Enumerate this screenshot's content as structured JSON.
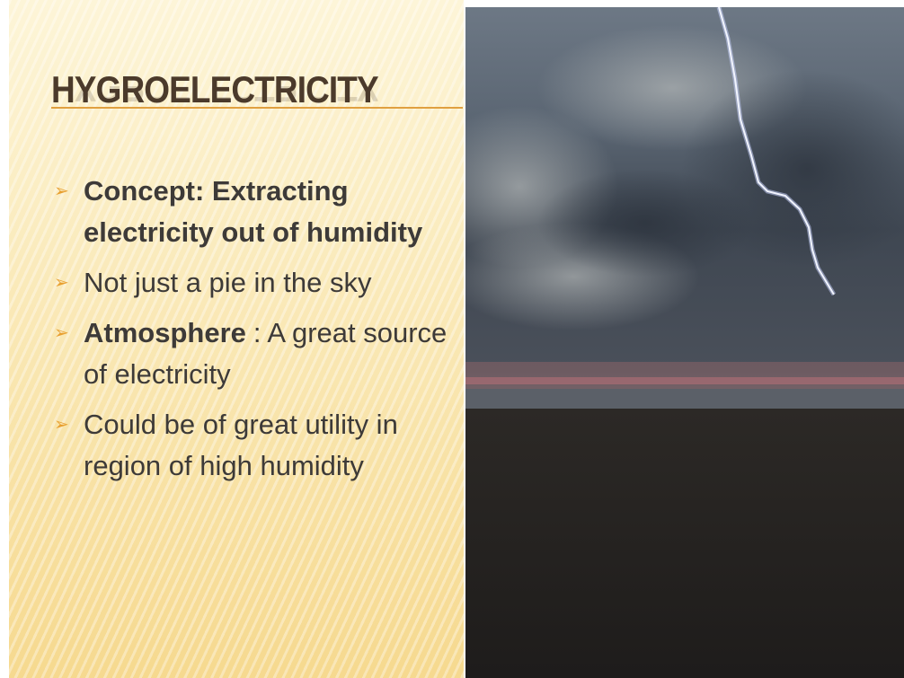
{
  "slide": {
    "title": "HYGROELECTRICITY",
    "bullets": [
      {
        "bold": "Concept: Extracting electricity out of humidity"
      },
      {
        "text": "Not just a pie in the sky"
      },
      {
        "bold": "Atmosphere",
        "text": ": A great source of electricity"
      },
      {
        "text": "Could be of great utility in region of high humidity"
      }
    ]
  }
}
